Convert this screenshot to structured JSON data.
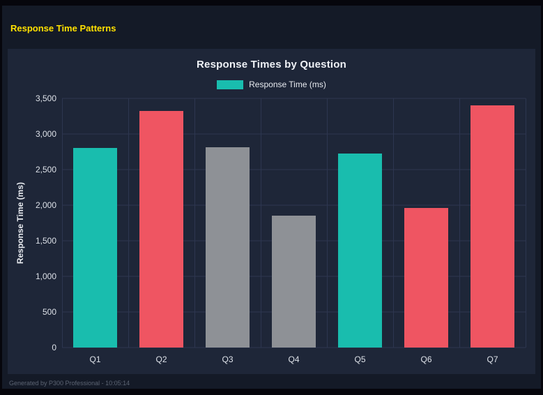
{
  "header": {
    "title": "Response Time Patterns"
  },
  "footer": {
    "text": "Generated by P300 Professional - 10:05:14"
  },
  "colors": {
    "teal": "#19bdae",
    "red": "#ef5562",
    "gray": "#8e9196",
    "accent_yellow": "#ffe000",
    "panel_bg": "#1e2638",
    "page_bg": "#141a27",
    "gridline": "#2d3650"
  },
  "chart_data": {
    "type": "bar",
    "title": "Response Times by Question",
    "legend": [
      {
        "label": "Response Time (ms)",
        "color": "#19bdae"
      }
    ],
    "legend_position": "top",
    "categories": [
      "Q1",
      "Q2",
      "Q3",
      "Q4",
      "Q5",
      "Q6",
      "Q7"
    ],
    "values": [
      2800,
      3320,
      2810,
      1850,
      2730,
      1960,
      3400
    ],
    "bar_colors": [
      "#19bdae",
      "#ef5562",
      "#8e9196",
      "#8e9196",
      "#19bdae",
      "#ef5562",
      "#ef5562"
    ],
    "xlabel": "",
    "ylabel": "Response Time (ms)",
    "ylim": [
      0,
      3500
    ],
    "yticks": [
      0,
      500,
      1000,
      1500,
      2000,
      2500,
      3000,
      3500
    ],
    "ytick_labels": [
      "0",
      "500",
      "1,000",
      "1,500",
      "2,000",
      "2,500",
      "3,000",
      "3,500"
    ],
    "grid": true
  }
}
